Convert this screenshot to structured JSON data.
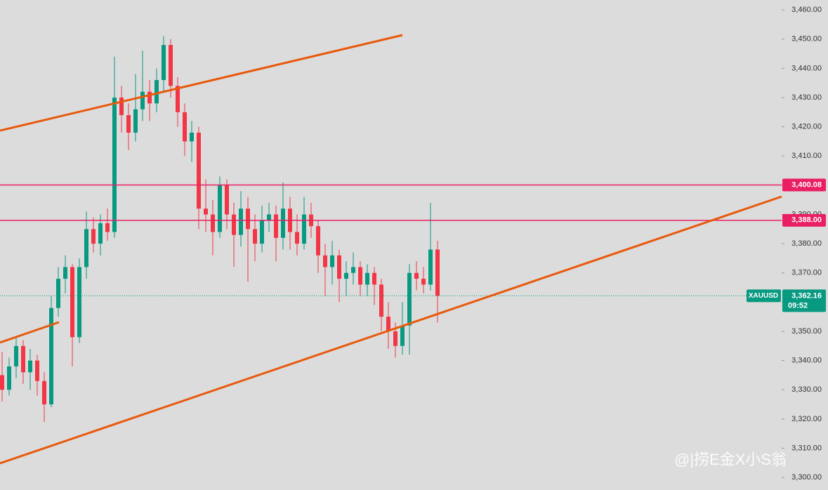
{
  "chart_data": {
    "type": "candlestick",
    "symbol": "XAUUSD",
    "countdown": "09:52",
    "watermark": "@|捞E金X小S翁",
    "ylim": [
      3295.7,
      3463.4
    ],
    "yticks": [
      {
        "value": 3300,
        "label": "3,300.00"
      },
      {
        "value": 3310,
        "label": "3,310.00"
      },
      {
        "value": 3320,
        "label": "3,320.00"
      },
      {
        "value": 3330,
        "label": "3,330.00"
      },
      {
        "value": 3340,
        "label": "3,340.00"
      },
      {
        "value": 3350,
        "label": "3,350.00"
      },
      {
        "value": 3360,
        "label": "3,360.00"
      },
      {
        "value": 3370,
        "label": "3,370.00"
      },
      {
        "value": 3380,
        "label": "3,380.00"
      },
      {
        "value": 3390,
        "label": "3,390.00"
      },
      {
        "value": 3400,
        "label": "3,400.00"
      },
      {
        "value": 3410,
        "label": "3,410.00"
      },
      {
        "value": 3420,
        "label": "3,420.00"
      },
      {
        "value": 3430,
        "label": "3,430.00"
      },
      {
        "value": 3440,
        "label": "3,440.00"
      },
      {
        "value": 3450,
        "label": "3,450.00"
      },
      {
        "value": 3460,
        "label": "3,460.00"
      }
    ],
    "up_color": "#089981",
    "down_color": "#f23645",
    "hlines": [
      {
        "value": 3400.08,
        "label": "3,400.08",
        "color": "#e91e63"
      },
      {
        "value": 3388.0,
        "label": "3,388.00",
        "color": "#e91e63"
      }
    ],
    "last_price": {
      "value": 3362.16,
      "label": "3,362.16",
      "color": "#089981"
    },
    "ohlc": [
      [
        3335,
        3343,
        3326,
        3330
      ],
      [
        3330,
        3341,
        3328,
        3338
      ],
      [
        3338,
        3348,
        3334,
        3345
      ],
      [
        3345,
        3347,
        3332,
        3336
      ],
      [
        3336,
        3344,
        3330,
        3340
      ],
      [
        3340,
        3342,
        3328,
        3333
      ],
      [
        3333,
        3336,
        3319,
        3325
      ],
      [
        3325,
        3362,
        3324,
        3358
      ],
      [
        3358,
        3372,
        3355,
        3368
      ],
      [
        3368,
        3376,
        3363,
        3372
      ],
      [
        3372,
        3373,
        3338,
        3348
      ],
      [
        3348,
        3375,
        3346,
        3372
      ],
      [
        3372,
        3391,
        3368,
        3385
      ],
      [
        3385,
        3389,
        3377,
        3380
      ],
      [
        3380,
        3390,
        3376,
        3387
      ],
      [
        3387,
        3392,
        3381,
        3384
      ],
      [
        3384,
        3444,
        3382,
        3430
      ],
      [
        3430,
        3434,
        3418,
        3424
      ],
      [
        3424,
        3428,
        3412,
        3418
      ],
      [
        3418,
        3438,
        3415,
        3426
      ],
      [
        3426,
        3446,
        3422,
        3432
      ],
      [
        3432,
        3436,
        3422,
        3428
      ],
      [
        3428,
        3440,
        3425,
        3436
      ],
      [
        3436,
        3451,
        3432,
        3448
      ],
      [
        3448,
        3450,
        3430,
        3434
      ],
      [
        3434,
        3437,
        3420,
        3425
      ],
      [
        3425,
        3428,
        3410,
        3415
      ],
      [
        3415,
        3422,
        3408,
        3418
      ],
      [
        3418,
        3420,
        3385,
        3392
      ],
      [
        3392,
        3402,
        3384,
        3390
      ],
      [
        3390,
        3395,
        3376,
        3384
      ],
      [
        3384,
        3403,
        3382,
        3400
      ],
      [
        3400,
        3402,
        3385,
        3390
      ],
      [
        3390,
        3394,
        3372,
        3383
      ],
      [
        3383,
        3398,
        3379,
        3392
      ],
      [
        3392,
        3396,
        3367,
        3385
      ],
      [
        3385,
        3390,
        3374,
        3380
      ],
      [
        3380,
        3393,
        3377,
        3388
      ],
      [
        3388,
        3394,
        3384,
        3390
      ],
      [
        3390,
        3393,
        3374,
        3382
      ],
      [
        3382,
        3401,
        3378,
        3392
      ],
      [
        3392,
        3396,
        3378,
        3384
      ],
      [
        3384,
        3390,
        3376,
        3380
      ],
      [
        3380,
        3396,
        3378,
        3390
      ],
      [
        3390,
        3394,
        3382,
        3386
      ],
      [
        3386,
        3388,
        3370,
        3376
      ],
      [
        3376,
        3380,
        3362,
        3372
      ],
      [
        3372,
        3381,
        3366,
        3376
      ],
      [
        3376,
        3378,
        3360,
        3368
      ],
      [
        3368,
        3374,
        3362,
        3370
      ],
      [
        3370,
        3377,
        3366,
        3372
      ],
      [
        3372,
        3374,
        3362,
        3366
      ],
      [
        3366,
        3373,
        3362,
        3370
      ],
      [
        3370,
        3372,
        3359,
        3366
      ],
      [
        3366,
        3368,
        3350,
        3355
      ],
      [
        3355,
        3360,
        3344,
        3350
      ],
      [
        3350,
        3353,
        3341,
        3345
      ],
      [
        3345,
        3360,
        3342,
        3352
      ],
      [
        3352,
        3373,
        3342,
        3370
      ],
      [
        3370,
        3374,
        3364,
        3368
      ],
      [
        3368,
        3372,
        3363,
        3366
      ],
      [
        3366,
        3394,
        3364,
        3378
      ],
      [
        3378,
        3381,
        3353,
        3362.16
      ]
    ]
  }
}
